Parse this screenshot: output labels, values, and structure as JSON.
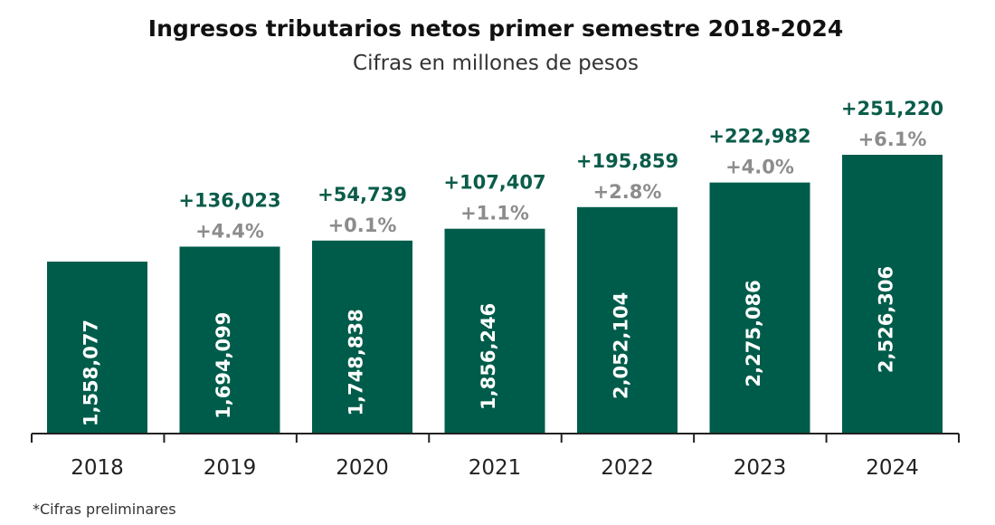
{
  "chart_data": {
    "type": "bar",
    "title": "Ingresos tributarios netos primer semestre 2018-2024",
    "subtitle": "Cifras en millones de pesos",
    "footnote": "*Cifras preliminares",
    "categories": [
      "2018",
      "2019",
      "2020",
      "2021",
      "2022",
      "2023",
      "2024"
    ],
    "values": [
      1558077,
      1694099,
      1748838,
      1856246,
      2052104,
      2275086,
      2526306
    ],
    "value_labels": [
      "1,558,077",
      "1,694,099",
      "1,748,838",
      "1,856,246",
      "2,052,104",
      "2,275,086",
      "2,526,306"
    ],
    "annotations_diff": [
      "",
      "+136,023",
      "+54,739",
      "+107,407",
      "+195,859",
      "+222,982",
      "+251,220"
    ],
    "annotations_pct": [
      "",
      "+4.4%",
      "+0.1%",
      "+1.1%",
      "+2.8%",
      "+4.0%",
      "+6.1%"
    ],
    "ylim": [
      0,
      2526306
    ],
    "grid": false,
    "colors": {
      "bar": "#005c4a",
      "diff_text": "#0b5c4a",
      "pct_text": "#8c8c8c"
    }
  }
}
